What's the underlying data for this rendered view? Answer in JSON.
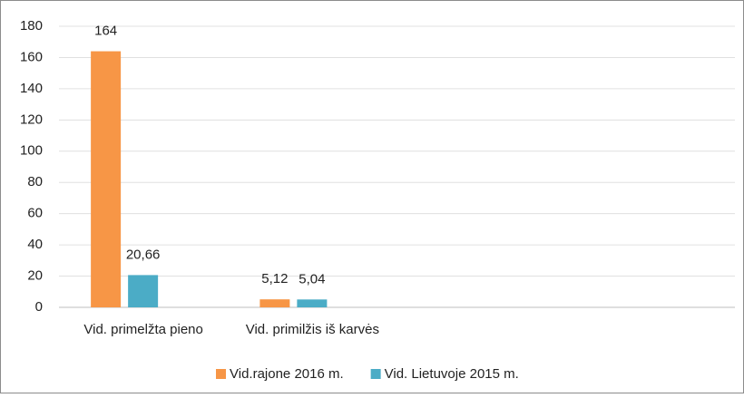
{
  "chart_data": {
    "type": "bar",
    "categories": [
      "Vid. primelžta pieno",
      "Vid. primilžis iš karvės",
      null,
      null
    ],
    "series": [
      {
        "name": "Vid.rajone 2016 m.",
        "color": "#f79646",
        "values": [
          164,
          5.12,
          null,
          null
        ],
        "value_labels": [
          "164",
          "5,12",
          null,
          null
        ]
      },
      {
        "name": "Vid. Lietuvoje 2015 m.",
        "color": "#4bacc6",
        "values": [
          20.66,
          5.04,
          null,
          null
        ],
        "value_labels": [
          "20,66",
          "5,04",
          null,
          null
        ]
      }
    ],
    "ylim": [
      0,
      180
    ],
    "yticks": [
      0,
      20,
      40,
      60,
      80,
      100,
      120,
      140,
      160,
      180
    ],
    "grid": true,
    "legend": "bottom"
  }
}
